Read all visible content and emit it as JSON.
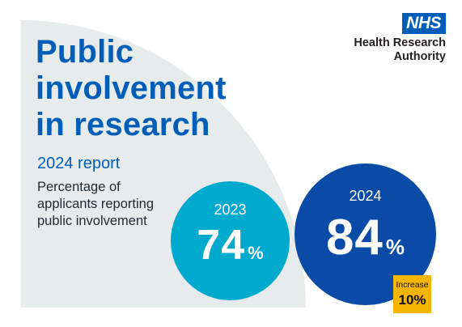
{
  "header": {
    "title_lines": [
      "Public",
      "involvement",
      "in research"
    ],
    "subtitle": "2024 report",
    "description": "Percentage of applicants reporting public involvement"
  },
  "logo": {
    "badge": "NHS",
    "org_line1": "Health Research",
    "org_line2": "Authority"
  },
  "stats": [
    {
      "year": "2023",
      "value": "74",
      "unit": "%",
      "color": "#00a9ce"
    },
    {
      "year": "2024",
      "value": "84",
      "unit": "%",
      "color": "#0b4ba8"
    }
  ],
  "increase": {
    "label": "Increase",
    "value": "10%",
    "color": "#f6b500"
  },
  "colors": {
    "title": "#005eb8",
    "background_shape": "#e7ebec",
    "nhs_blue": "#005eb8"
  }
}
